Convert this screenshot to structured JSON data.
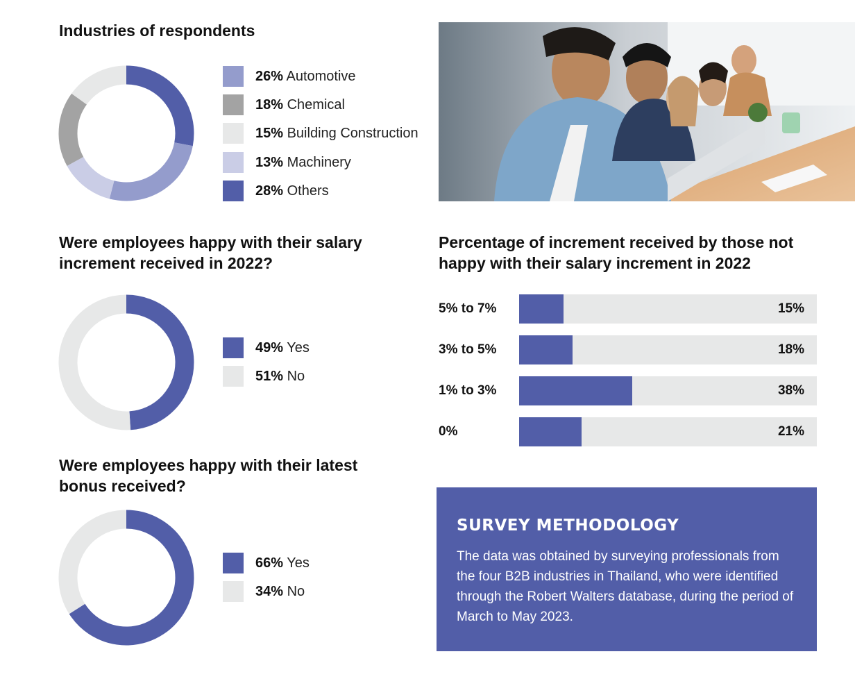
{
  "colors": {
    "automotive": "#949ccc",
    "chemical": "#a3a3a3",
    "building": "#e7e8e8",
    "machinery": "#cacde6",
    "others": "#525ea8",
    "yes": "#525ea8",
    "no": "#e7e8e8",
    "bar_fill": "#525ea8",
    "bar_track": "#e7e8e8",
    "method_bg": "#525ea8"
  },
  "photo": {
    "alt": "photo"
  },
  "chart_data": [
    {
      "type": "pie",
      "title": "Industries of respondents",
      "slices": [
        {
          "label": "Automotive",
          "value": 26,
          "pct_label": "26%",
          "color": "#949ccc"
        },
        {
          "label": "Chemical",
          "value": 18,
          "pct_label": "18%",
          "color": "#a3a3a3"
        },
        {
          "label": "Building Construction",
          "value": 15,
          "pct_label": "15%",
          "color": "#e7e8e8"
        },
        {
          "label": "Machinery",
          "value": 13,
          "pct_label": "13%",
          "color": "#cacde6"
        },
        {
          "label": "Others",
          "value": 28,
          "pct_label": "28%",
          "color": "#525ea8"
        }
      ],
      "draw_order": [
        "Others",
        "Automotive",
        "Machinery",
        "Chemical",
        "Building Construction"
      ],
      "legend": "right"
    },
    {
      "type": "pie",
      "title": "Were employees happy with their salary increment received in 2022?",
      "slices": [
        {
          "label": "Yes",
          "value": 49,
          "pct_label": "49%",
          "color": "#525ea8"
        },
        {
          "label": "No",
          "value": 51,
          "pct_label": "51%",
          "color": "#e7e8e8"
        }
      ],
      "draw_order": [
        "Yes",
        "No"
      ],
      "legend": "right"
    },
    {
      "type": "pie",
      "title": "Were employees happy with their latest bonus received?",
      "slices": [
        {
          "label": "Yes",
          "value": 66,
          "pct_label": "66%",
          "color": "#525ea8"
        },
        {
          "label": "No",
          "value": 34,
          "pct_label": "34%",
          "color": "#e7e8e8"
        }
      ],
      "draw_order": [
        "Yes",
        "No"
      ],
      "legend": "right"
    },
    {
      "type": "bar",
      "orientation": "horizontal",
      "title": "Percentage of increment received by those not happy with their salary increment in 2022",
      "categories": [
        "5% to 7%",
        "3% to 5%",
        "1% to 3%",
        "0%"
      ],
      "values": [
        15,
        18,
        38,
        21
      ],
      "value_labels": [
        "15%",
        "18%",
        "38%",
        "21%"
      ],
      "xlim": [
        0,
        100
      ]
    }
  ],
  "methodology": {
    "heading": "SURVEY METHODOLOGY",
    "text": "The data was obtained by surveying professionals from the four B2B industries in Thailand, who were identified through the Robert Walters database, during the period of March to May 2023."
  }
}
